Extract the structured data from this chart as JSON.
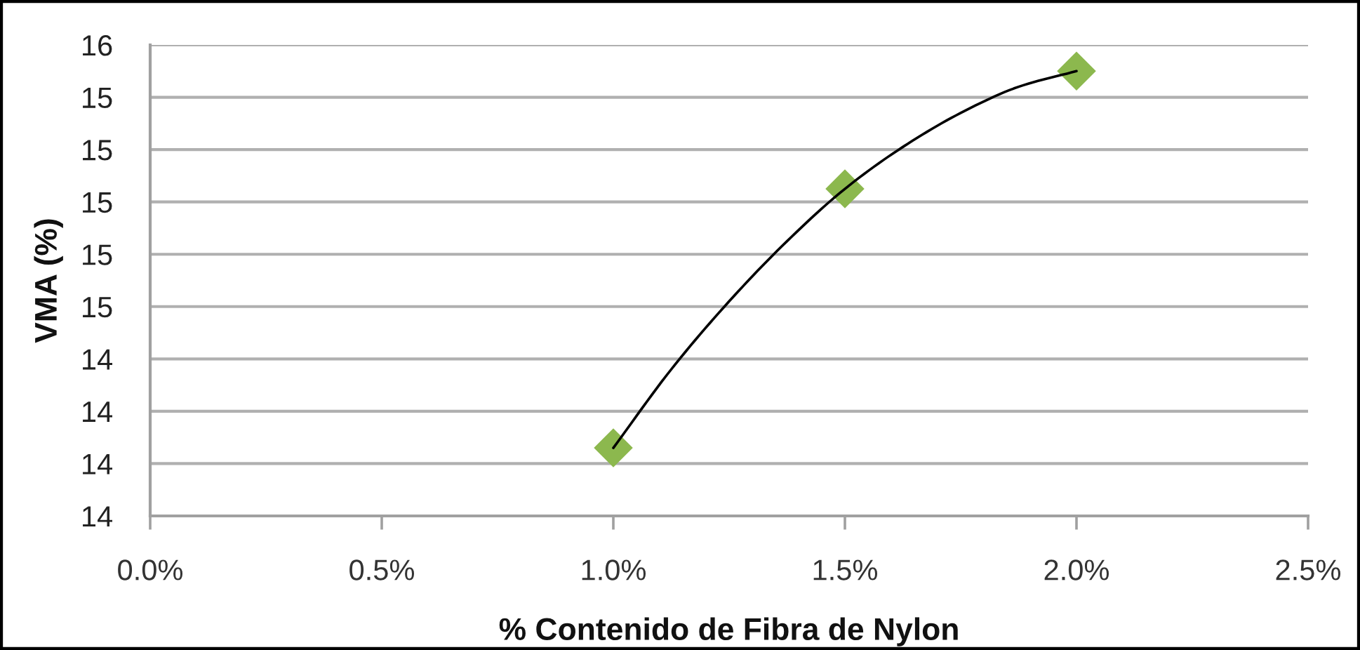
{
  "chart_data": {
    "type": "scatter",
    "xlabel": "% Contenido de Fibra de Nylon",
    "ylabel": "VMA (%)",
    "series": [
      {
        "color": "#8cb84e",
        "marker": "diamond",
        "x": [
          1.0,
          1.5,
          2.0
        ],
        "values": [
          14.06,
          15.05,
          15.5
        ]
      },
      {
        "type": "line",
        "color": "#000000",
        "marker": "none",
        "line_style": "solid",
        "x": [
          1.0,
          1.125,
          1.25,
          1.375,
          1.5,
          1.625,
          1.75,
          1.875,
          2.0
        ],
        "values": [
          14.06,
          14.36,
          14.62,
          14.85,
          15.05,
          15.21,
          15.34,
          15.44,
          15.5
        ]
      }
    ],
    "xlim": [
      0,
      2.5
    ],
    "xticks": [
      {
        "value": 0,
        "label": "0.0%"
      },
      {
        "value": 0.5,
        "label": "0.5%"
      },
      {
        "value": 1.0,
        "label": "1.0%"
      },
      {
        "value": 1.5,
        "label": "1.5%"
      },
      {
        "value": 2.0,
        "label": "2.0%"
      },
      {
        "value": 2.5,
        "label": "2.5%"
      }
    ],
    "ylim": [
      13.8,
      15.6
    ],
    "yticks": [
      {
        "value": 13.8,
        "label": "14"
      },
      {
        "value": 14.0,
        "label": "14"
      },
      {
        "value": 14.2,
        "label": "14"
      },
      {
        "value": 14.4,
        "label": "14"
      },
      {
        "value": 14.6,
        "label": "15"
      },
      {
        "value": 14.8,
        "label": "15"
      },
      {
        "value": 15.0,
        "label": "15"
      },
      {
        "value": 15.2,
        "label": "15"
      },
      {
        "value": 15.4,
        "label": "15"
      },
      {
        "value": 15.6,
        "label": "16"
      }
    ],
    "grid": "y"
  }
}
